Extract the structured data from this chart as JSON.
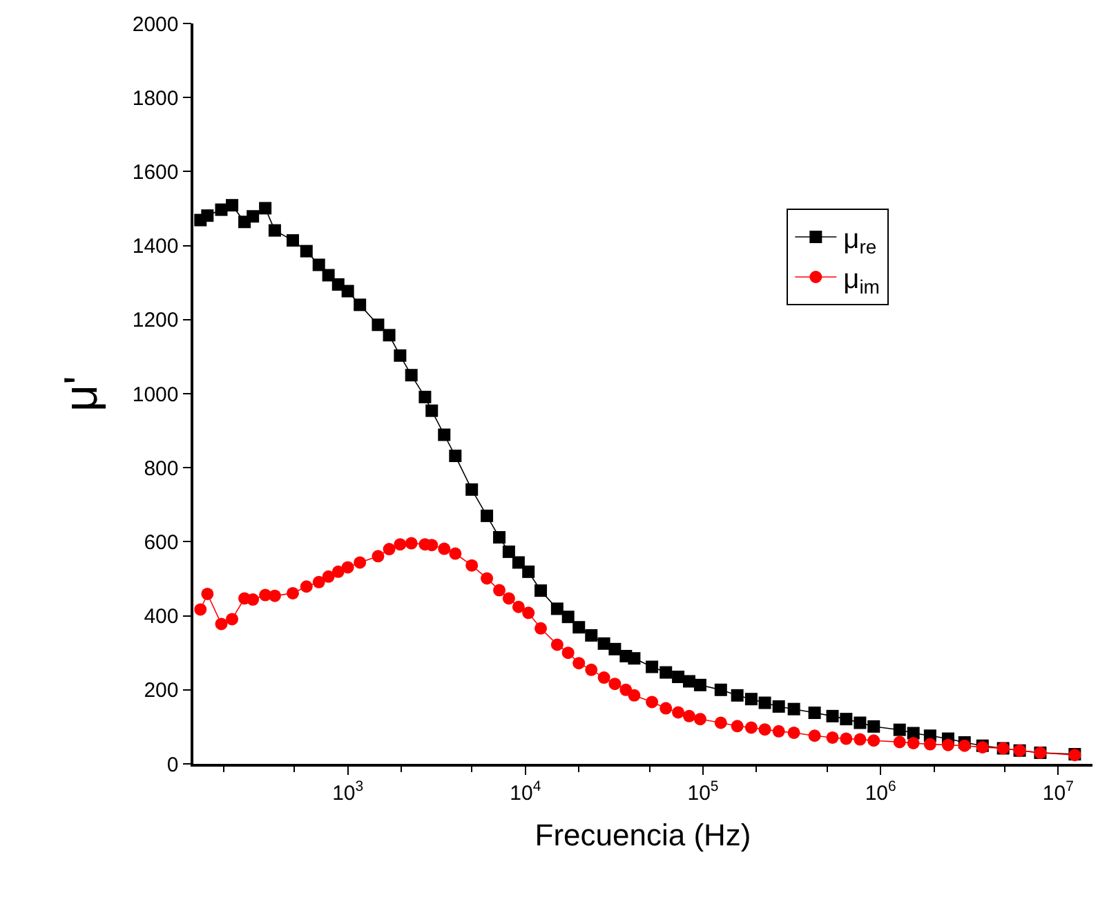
{
  "chart_data": {
    "type": "line",
    "xlabel": "Frecuencia (Hz)",
    "ylabel": "μ'",
    "x": [
      148,
      162,
      194,
      223,
      262,
      292,
      343,
      388,
      490,
      585,
      687,
      778,
      883,
      1000,
      1170,
      1480,
      1710,
      1970,
      2280,
      2720,
      2970,
      3490,
      4030,
      4990,
      6070,
      7130,
      8070,
      9150,
      10400,
      12200,
      15100,
      17400,
      20000,
      23500,
      27700,
      31900,
      36800,
      41000,
      51600,
      61800,
      72500,
      83600,
      96400,
      126000,
      156000,
      187000,
      223000,
      267000,
      325000,
      425000,
      536000,
      640000,
      766000,
      915000,
      1280000,
      1530000,
      1900000,
      2400000,
      2970000,
      3750000,
      4900000,
      6070000,
      7930000,
      12400000
    ],
    "series": [
      {
        "name": "μ$_{re}$",
        "color": "#000000",
        "marker": "square",
        "values": [
          1469,
          1481,
          1497,
          1509,
          1464,
          1479,
          1501,
          1441,
          1414,
          1385,
          1348,
          1320,
          1295,
          1277,
          1240,
          1186,
          1158,
          1103,
          1050,
          991,
          954,
          889,
          832,
          741,
          670,
          612,
          573,
          544,
          519,
          468,
          419,
          397,
          369,
          347,
          325,
          310,
          291,
          285,
          262,
          247,
          235,
          223,
          213,
          200,
          185,
          175,
          165,
          155,
          148,
          138,
          129,
          121,
          111,
          101,
          92,
          83,
          76,
          68,
          58,
          49,
          42,
          36,
          30,
          26
        ]
      },
      {
        "name": "μ$_{im}$",
        "color": "#ff0000",
        "marker": "circle",
        "values": [
          417,
          459,
          378,
          391,
          447,
          444,
          456,
          454,
          461,
          479,
          491,
          506,
          519,
          531,
          544,
          561,
          580,
          593,
          596,
          593,
          591,
          581,
          568,
          536,
          501,
          469,
          447,
          424,
          408,
          366,
          322,
          300,
          272,
          254,
          233,
          216,
          200,
          185,
          167,
          150,
          139,
          129,
          121,
          111,
          102,
          98,
          93,
          88,
          84,
          76,
          71,
          68,
          66,
          63,
          59,
          56,
          53,
          51,
          49,
          45,
          42,
          36,
          30,
          24
        ]
      }
    ],
    "log": "x",
    "xlim": [
      135,
      15600000
    ],
    "xticks": [
      {
        "value": 1000,
        "label": "10$^{3}$"
      },
      {
        "value": 10000,
        "label": "10$^{4}$"
      },
      {
        "value": 100000,
        "label": "10$^{5}$"
      },
      {
        "value": 1000000,
        "label": "10$^{6}$"
      },
      {
        "value": 10000000,
        "label": "10$^{7}$"
      }
    ],
    "ylim": [
      0,
      2000
    ],
    "yticks": [
      0,
      200,
      400,
      600,
      800,
      1000,
      1200,
      1400,
      1600,
      1800,
      2000
    ],
    "legend": "top right",
    "line_style": "solid"
  }
}
